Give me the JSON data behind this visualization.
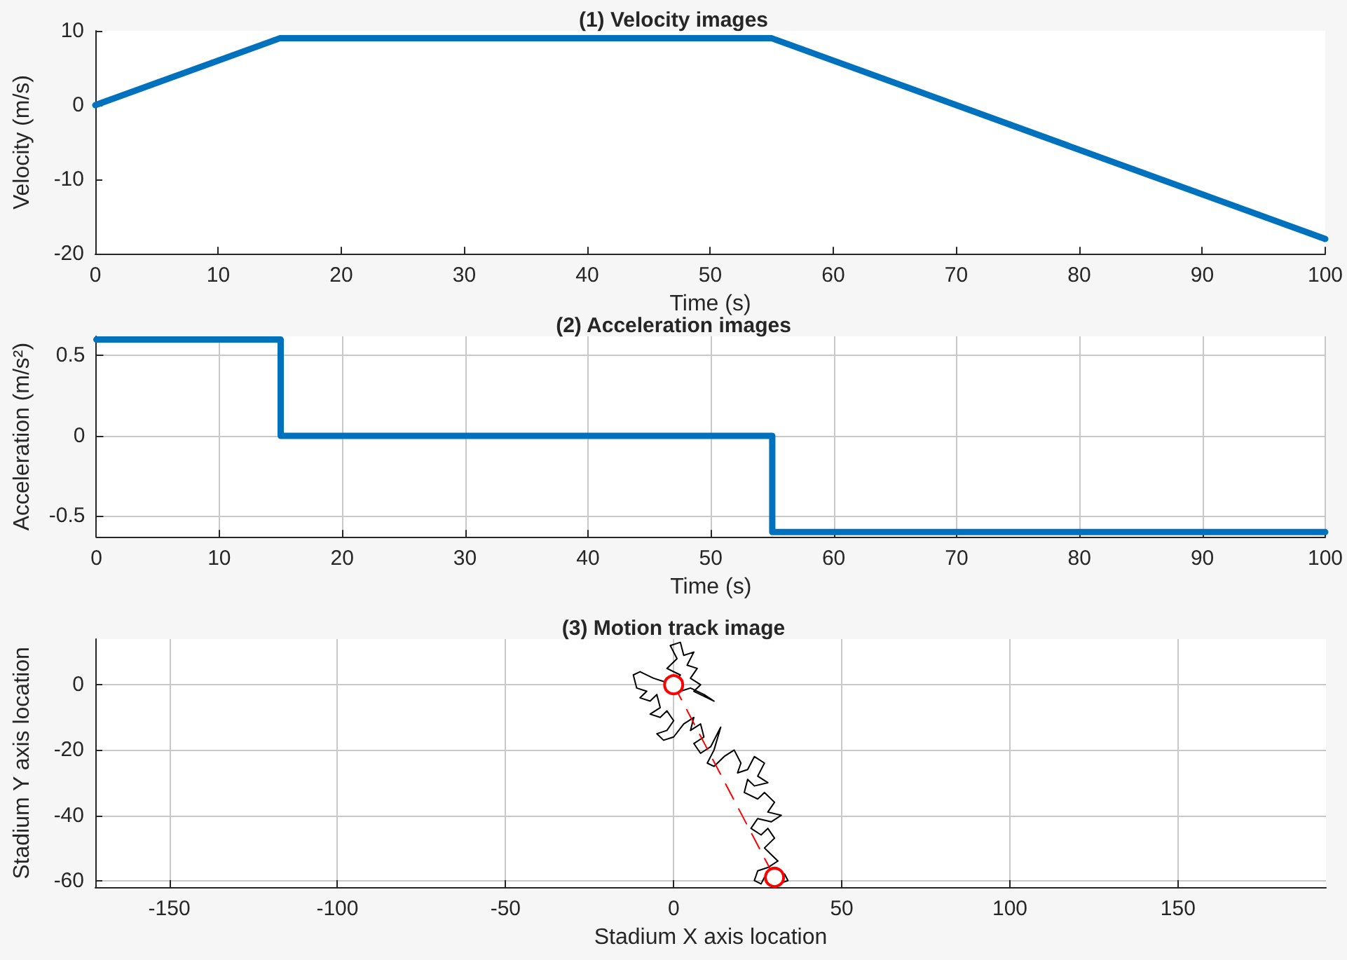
{
  "chart_data": [
    {
      "type": "line",
      "title": "(1) Velocity images",
      "xlabel": "Time (s)",
      "ylabel": "Velocity (m/s)",
      "xlim": [
        0,
        100
      ],
      "xticks": [
        0,
        10,
        20,
        30,
        40,
        50,
        60,
        70,
        80,
        90,
        100
      ],
      "ylim": [
        -20,
        10
      ],
      "yticks": [
        -20,
        -10,
        0,
        10
      ],
      "grid": false,
      "series": [
        {
          "color": "#0072bd",
          "x": [
            0,
            15,
            55,
            100
          ],
          "values": [
            0,
            9,
            9,
            -18
          ]
        }
      ]
    },
    {
      "type": "step",
      "title": "(2) Acceleration images",
      "xlabel": "Time (s)",
      "ylabel": "Acceleration (m/s²)",
      "xlim": [
        0,
        100
      ],
      "xticks": [
        0,
        10,
        20,
        30,
        40,
        50,
        60,
        70,
        80,
        90,
        100
      ],
      "ylim": [
        -0.63,
        0.62
      ],
      "yticks": [
        -0.5,
        0,
        0.5
      ],
      "grid": true,
      "series": [
        {
          "color": "#0072bd",
          "x": [
            0,
            15,
            55,
            100
          ],
          "values": [
            0.6,
            0,
            -0.6,
            -0.6
          ]
        }
      ]
    },
    {
      "type": "line",
      "title": "(3) Motion track image",
      "xlabel": "Stadium X axis location",
      "ylabel": "Stadium Y axis location",
      "xlim": [
        -172,
        194
      ],
      "xticks": [
        -150,
        -100,
        -50,
        0,
        50,
        100,
        150
      ],
      "ylim": [
        -62,
        14
      ],
      "yticks": [
        -60,
        -40,
        -20,
        0
      ],
      "grid": true,
      "series": [
        {
          "color": "#000000",
          "marker": "none",
          "line_style": "solid",
          "x": [
            0,
            2,
            -2,
            1,
            -1,
            2,
            3,
            6,
            4,
            7,
            5,
            8,
            6,
            10,
            12,
            9,
            5,
            2,
            -3,
            -6,
            -10,
            -12,
            -11,
            -8,
            -10,
            -7,
            -5,
            -4,
            -7,
            -4,
            -2,
            0,
            -2,
            -5,
            -3,
            0,
            3,
            6,
            5,
            8,
            9,
            6,
            8,
            11,
            13,
            14,
            12,
            10,
            12,
            15,
            18,
            20,
            19,
            22,
            24,
            27,
            25,
            28,
            24,
            22,
            21,
            25,
            27,
            30,
            28,
            32,
            29,
            25,
            23,
            26,
            28,
            30,
            27,
            29,
            31,
            28,
            25,
            24,
            26,
            27,
            30,
            33,
            34,
            31
          ],
          "values": [
            0,
            3,
            5,
            8,
            12,
            13,
            9,
            10,
            6,
            5,
            2,
            0,
            -2,
            -4,
            -5,
            -3,
            -1,
            -2,
            1,
            2,
            4,
            3,
            -1,
            -2,
            -4,
            -5,
            -3,
            -7,
            -9,
            -10,
            -8,
            -11,
            -14,
            -15,
            -17,
            -16,
            -12,
            -10,
            -14,
            -12,
            -16,
            -18,
            -21,
            -19,
            -15,
            -13,
            -20,
            -24,
            -25,
            -22,
            -20,
            -24,
            -27,
            -26,
            -22,
            -24,
            -28,
            -30,
            -31,
            -29,
            -33,
            -35,
            -33,
            -36,
            -39,
            -40,
            -42,
            -41,
            -44,
            -46,
            -44,
            -47,
            -50,
            -52,
            -54,
            -56,
            -57,
            -60,
            -61,
            -59,
            -57,
            -58,
            -60,
            -61
          ]
        },
        {
          "color": "#ff0000",
          "marker": "circle",
          "line_style": "dashed",
          "x": [
            0,
            30
          ],
          "values": [
            0,
            -59
          ]
        }
      ]
    }
  ]
}
